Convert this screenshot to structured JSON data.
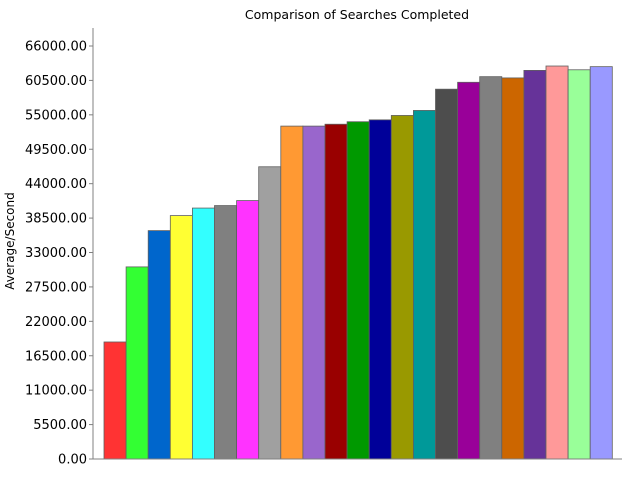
{
  "chart_data": {
    "type": "bar",
    "title": "Comparison of Searches Completed",
    "xlabel": "",
    "ylabel": "Average/Second",
    "ylim": [
      0,
      66000
    ],
    "yticks": [
      "0.00",
      "5500.00",
      "11000.00",
      "16500.00",
      "22000.00",
      "27500.00",
      "33000.00",
      "38500.00",
      "44000.00",
      "49500.00",
      "55000.00",
      "60500.00",
      "66000.00"
    ],
    "grid": false,
    "legend": "none",
    "values": [
      18700,
      30700,
      36500,
      38900,
      40100,
      40500,
      41300,
      46700,
      53200,
      53200,
      53500,
      53900,
      54200,
      54900,
      55700,
      59100,
      60200,
      61100,
      60900,
      62100,
      62800,
      62200,
      62700
    ],
    "colors": [
      "#ff3333",
      "#33ff33",
      "#0066cc",
      "#ffff33",
      "#33ffff",
      "#808080",
      "#ff33ff",
      "#a0a0a0",
      "#ff9933",
      "#9966cc",
      "#990000",
      "#009900",
      "#000099",
      "#999900",
      "#009999",
      "#4d4d4d",
      "#990099",
      "#808080",
      "#cc6600",
      "#663399",
      "#ff9999",
      "#99ff99",
      "#9999ff"
    ]
  }
}
